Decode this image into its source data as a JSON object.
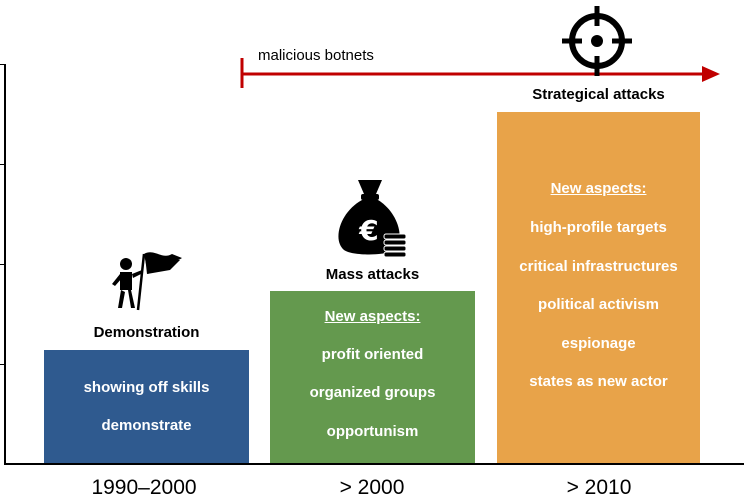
{
  "timeline": {
    "label": "malicious botnets",
    "color": "#c00000"
  },
  "phases": [
    {
      "title": "Demonstration",
      "period": "1990–2000",
      "color": "#2f5a8f",
      "icon": "person-with-flag-icon",
      "lines": [
        "showing off skills",
        "demonstrate"
      ]
    },
    {
      "title": "Mass attacks",
      "period": "> 2000",
      "color": "#64994e",
      "icon": "money-bag-icon",
      "heading": "New aspects:",
      "lines": [
        "profit oriented",
        "organized groups",
        "opportunism"
      ]
    },
    {
      "title": "Strategical attacks",
      "period": "> 2010",
      "color": "#e8a349",
      "icon": "crosshair-target-icon",
      "heading": "New aspects:",
      "lines": [
        "high-profile targets",
        "critical infrastructures",
        "political activism",
        "espionage",
        "states as new actor"
      ]
    }
  ]
}
